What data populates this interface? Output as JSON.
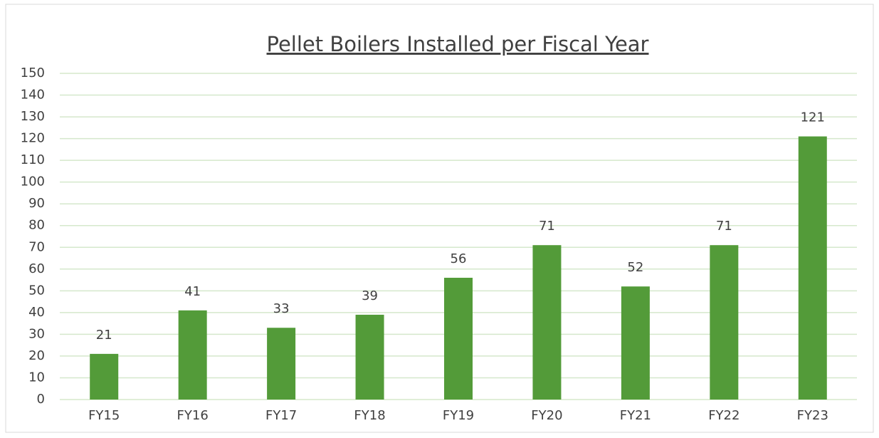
{
  "chart_data": {
    "type": "bar",
    "title": "Pellet Boilers Installed per Fiscal Year",
    "categories": [
      "FY15",
      "FY16",
      "FY17",
      "FY18",
      "FY19",
      "FY20",
      "FY21",
      "FY22",
      "FY23"
    ],
    "values": [
      21,
      41,
      33,
      39,
      56,
      71,
      52,
      71,
      121
    ],
    "color": "#539b39",
    "ylim": [
      0,
      150
    ],
    "yticks": [
      0,
      10,
      20,
      30,
      40,
      50,
      60,
      70,
      80,
      90,
      100,
      110,
      120,
      130,
      140,
      150
    ],
    "grid": true,
    "grid_color": "#d5e8cc"
  }
}
